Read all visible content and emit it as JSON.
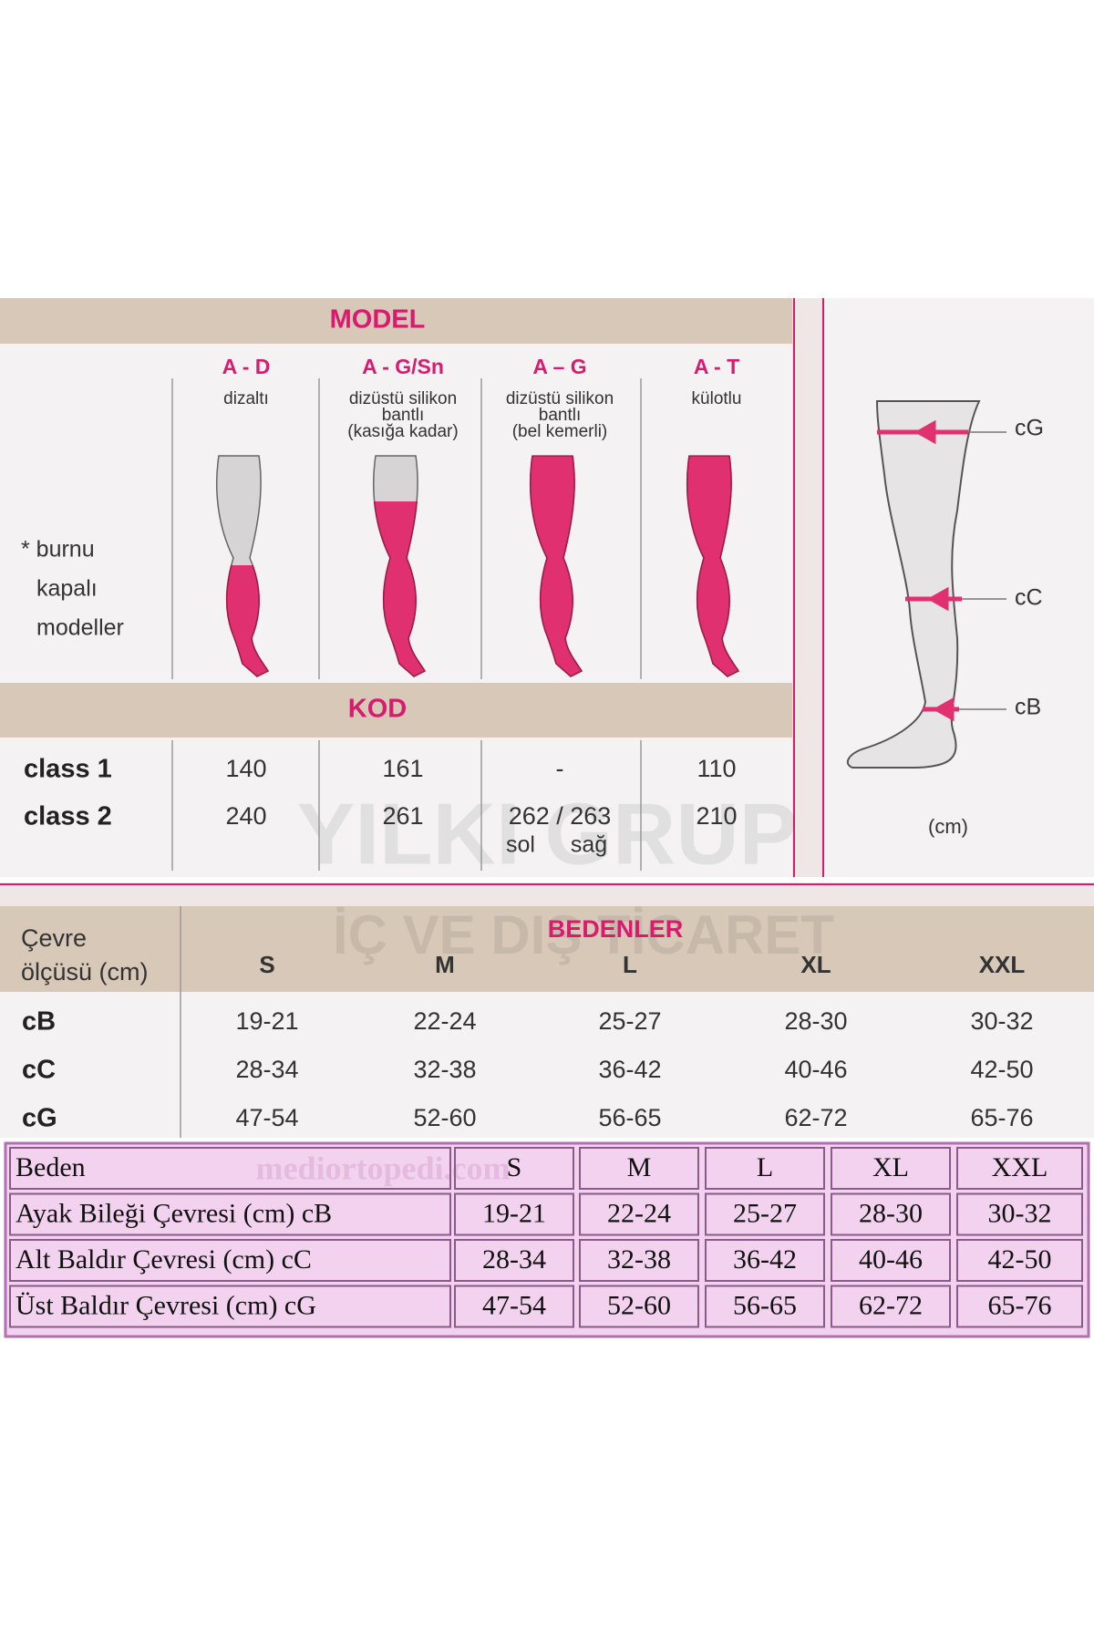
{
  "model": {
    "title": "MODEL",
    "models": [
      {
        "code": "A - D",
        "desc": [
          "dizaltı"
        ]
      },
      {
        "code": "A - G/Sn",
        "desc": [
          "dizüstü silikon",
          "bantlı",
          "(kasığa kadar)"
        ]
      },
      {
        "code": "A – G",
        "desc": [
          "dizüstü silikon",
          "bantlı",
          "(bel kemerli)"
        ]
      },
      {
        "code": "A - T",
        "desc": [
          "külotlu"
        ]
      }
    ],
    "note": [
      "* burnu",
      "kapalı",
      "modeller"
    ]
  },
  "kod": {
    "title": "KOD",
    "rows": [
      {
        "label": "class 1",
        "values": [
          "140",
          "161",
          "-",
          "110"
        ]
      },
      {
        "label": "class 2",
        "values": [
          "240",
          "261",
          "262 / 263",
          "210"
        ]
      }
    ],
    "sub": [
      "sol",
      "sağ"
    ]
  },
  "leg": {
    "labels": [
      "cG",
      "cC",
      "cB"
    ],
    "unit": "(cm)"
  },
  "watermark": [
    "YILKI GRUP",
    "İÇ VE DIŞ TİCARET"
  ],
  "sizes": {
    "header": [
      "Çevre",
      "ölçüsü (cm)"
    ],
    "title": "BEDENLER",
    "columns": [
      "S",
      "M",
      "L",
      "XL",
      "XXL"
    ],
    "rows": [
      {
        "label": "cB",
        "values": [
          "19-21",
          "22-24",
          "25-27",
          "28-30",
          "30-32"
        ]
      },
      {
        "label": "cC",
        "values": [
          "28-34",
          "32-38",
          "36-42",
          "40-46",
          "42-50"
        ]
      },
      {
        "label": "cG",
        "values": [
          "47-54",
          "52-60",
          "56-65",
          "62-72",
          "65-76"
        ]
      }
    ]
  },
  "table": {
    "watermark": "mediortopedi.com",
    "header": [
      "Beden",
      "S",
      "M",
      "L",
      "XL",
      "XXL"
    ],
    "rows": [
      [
        "Ayak Bileği Çevresi (cm) cB",
        "19-21",
        "22-24",
        "25-27",
        "28-30",
        "30-32"
      ],
      [
        "Alt Baldır Çevresi (cm) cC",
        "28-34",
        "32-38",
        "36-42",
        "40-46",
        "42-50"
      ],
      [
        "Üst Baldır Çevresi (cm) cG",
        "47-54",
        "52-60",
        "56-65",
        "62-72",
        "65-76"
      ]
    ]
  }
}
